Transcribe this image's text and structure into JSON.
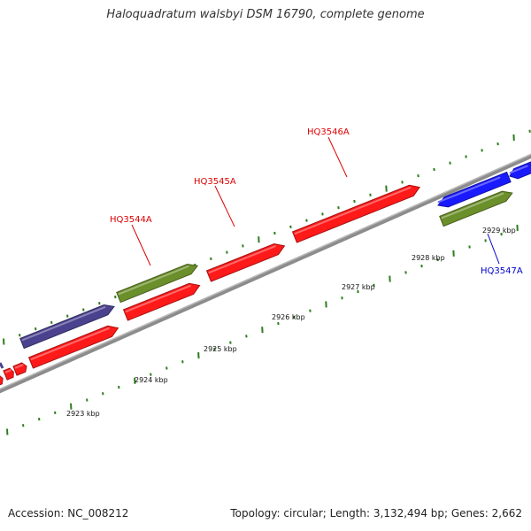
{
  "title": "Haloquadratum walsbyi DSM 16790, complete genome",
  "footer": {
    "accession": "Accession: NC_008212",
    "summary": "Topology: circular; Length: 3,132,494 bp; Genes: 2,662"
  },
  "colors": {
    "backbone": "#8c8c8c",
    "tick": "#2e7d1e",
    "red_gene": "#ff1a1a",
    "blue_gene": "#1a1aff",
    "green_feature": "#6b8f2a",
    "navy_feature": "#4a428f",
    "label_red": "#dd0000",
    "label_blue": "#0000cc"
  },
  "ruler_labels": [
    "2923 kbp",
    "2924 kbp",
    "2925 kbp",
    "2926 kbp",
    "2927 kbp",
    "2928 kbp",
    "2929 kbp"
  ],
  "gene_labels": [
    {
      "text": "HQ3544A",
      "color": "label_red"
    },
    {
      "text": "HQ3545A",
      "color": "label_red"
    },
    {
      "text": "HQ3546A",
      "color": "label_red"
    },
    {
      "text": "HQ3547A",
      "color": "label_blue"
    }
  ]
}
